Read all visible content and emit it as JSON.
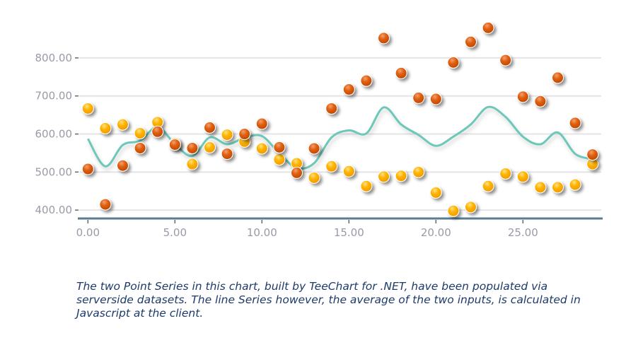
{
  "chart_data": {
    "type": "scatter",
    "title": "",
    "xlabel": "",
    "ylabel": "",
    "xlim": [
      -0.5,
      29.5
    ],
    "ylim": [
      378,
      915
    ],
    "grid": true,
    "x_ticks": [
      "0.00",
      "5.00",
      "10.00",
      "15.00",
      "20.00",
      "25.00"
    ],
    "x_tick_values": [
      0,
      5,
      10,
      15,
      20,
      25
    ],
    "y_ticks": [
      "400.00",
      "500.00",
      "600.00",
      "700.00",
      "800.00"
    ],
    "y_tick_values": [
      400,
      500,
      600,
      700,
      800
    ],
    "x": [
      0,
      1,
      2,
      3,
      4,
      5,
      6,
      7,
      8,
      9,
      10,
      11,
      12,
      13,
      14,
      15,
      16,
      17,
      18,
      19,
      20,
      21,
      22,
      23,
      24,
      25,
      26,
      27,
      28,
      29
    ],
    "series": [
      {
        "type": "point",
        "color": "#e05a00",
        "values": [
          508,
          415,
          517,
          563,
          606,
          572,
          563,
          617,
          548,
          600,
          627,
          565,
          498,
          562,
          667,
          717,
          740,
          852,
          760,
          695,
          692,
          788,
          842,
          879,
          794,
          698,
          686,
          748,
          629,
          546
        ]
      },
      {
        "type": "point",
        "color": "#ffb300",
        "values": [
          667,
          615,
          625,
          602,
          631,
          575,
          521,
          565,
          598,
          580,
          562,
          533,
          523,
          485,
          515,
          502,
          463,
          488,
          490,
          500,
          446,
          398,
          408,
          463,
          496,
          488,
          460,
          460,
          467,
          521
        ]
      },
      {
        "type": "line",
        "color": "#6ec8b8",
        "derived": "average of the two point series"
      }
    ]
  },
  "caption": "The two Point Series in this chart, built by TeeChart for .NET, have been populated via serverside datasets. The line Series however, the average of the two inputs, is calculated in Javascript at the client."
}
